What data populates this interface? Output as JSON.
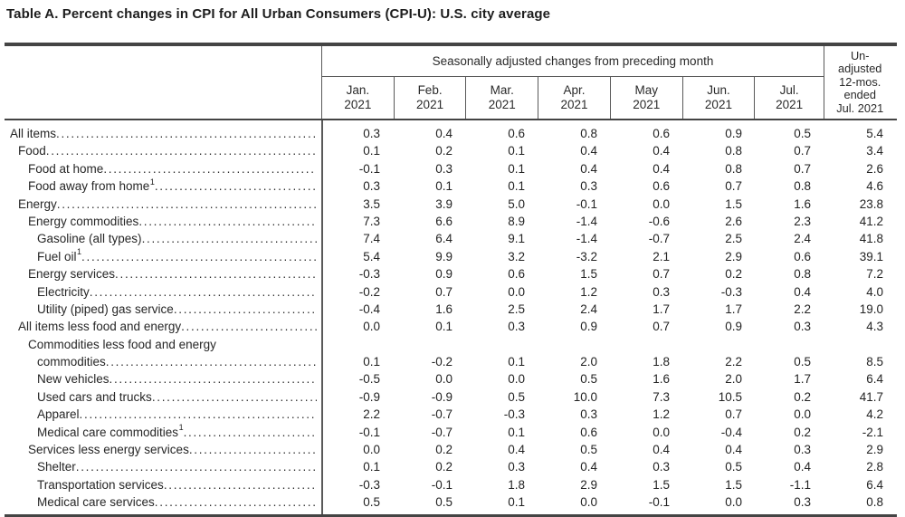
{
  "title": "Table A. Percent changes in CPI for All Urban Consumers (CPI-U): U.S. city average",
  "table": {
    "group_header": "Seasonally adjusted changes from preceding month",
    "months": [
      {
        "month": "Jan.",
        "year": "2021"
      },
      {
        "month": "Feb.",
        "year": "2021"
      },
      {
        "month": "Mar.",
        "year": "2021"
      },
      {
        "month": "Apr.",
        "year": "2021"
      },
      {
        "month": "May",
        "year": "2021"
      },
      {
        "month": "Jun.",
        "year": "2021"
      },
      {
        "month": "Jul.",
        "year": "2021"
      }
    ],
    "unadjusted_header_lines": [
      "Un-",
      "adjusted",
      "12-mos.",
      "ended",
      "Jul. 2021"
    ],
    "rows": [
      {
        "label": "All items",
        "indent": 0,
        "values": [
          "0.3",
          "0.4",
          "0.6",
          "0.8",
          "0.6",
          "0.9",
          "0.5",
          "5.4"
        ]
      },
      {
        "label": "Food",
        "indent": 1,
        "values": [
          "0.1",
          "0.2",
          "0.1",
          "0.4",
          "0.4",
          "0.8",
          "0.7",
          "3.4"
        ]
      },
      {
        "label": "Food at home",
        "indent": 2,
        "values": [
          "-0.1",
          "0.3",
          "0.1",
          "0.4",
          "0.4",
          "0.8",
          "0.7",
          "2.6"
        ]
      },
      {
        "label": "Food away from home",
        "sup": "1",
        "indent": 2,
        "values": [
          "0.3",
          "0.1",
          "0.1",
          "0.3",
          "0.6",
          "0.7",
          "0.8",
          "4.6"
        ]
      },
      {
        "label": "Energy",
        "indent": 1,
        "values": [
          "3.5",
          "3.9",
          "5.0",
          "-0.1",
          "0.0",
          "1.5",
          "1.6",
          "23.8"
        ]
      },
      {
        "label": "Energy commodities",
        "indent": 2,
        "values": [
          "7.3",
          "6.6",
          "8.9",
          "-1.4",
          "-0.6",
          "2.6",
          "2.3",
          "41.2"
        ]
      },
      {
        "label": "Gasoline (all types)",
        "indent": 3,
        "values": [
          "7.4",
          "6.4",
          "9.1",
          "-1.4",
          "-0.7",
          "2.5",
          "2.4",
          "41.8"
        ]
      },
      {
        "label": "Fuel oil",
        "sup": "1",
        "indent": 3,
        "values": [
          "5.4",
          "9.9",
          "3.2",
          "-3.2",
          "2.1",
          "2.9",
          "0.6",
          "39.1"
        ]
      },
      {
        "label": "Energy services",
        "indent": 2,
        "values": [
          "-0.3",
          "0.9",
          "0.6",
          "1.5",
          "0.7",
          "0.2",
          "0.8",
          "7.2"
        ]
      },
      {
        "label": "Electricity",
        "indent": 3,
        "values": [
          "-0.2",
          "0.7",
          "0.0",
          "1.2",
          "0.3",
          "-0.3",
          "0.4",
          "4.0"
        ]
      },
      {
        "label": "Utility (piped) gas service",
        "indent": 3,
        "values": [
          "-0.4",
          "1.6",
          "2.5",
          "2.4",
          "1.7",
          "1.7",
          "2.2",
          "19.0"
        ]
      },
      {
        "label": "All items less food and energy",
        "indent": 1,
        "values": [
          "0.0",
          "0.1",
          "0.3",
          "0.9",
          "0.7",
          "0.9",
          "0.3",
          "4.3"
        ]
      },
      {
        "label": "Commodities less food and energy",
        "label2": "commodities",
        "indent": 2,
        "values": [
          "0.1",
          "-0.2",
          "0.1",
          "2.0",
          "1.8",
          "2.2",
          "0.5",
          "8.5"
        ]
      },
      {
        "label": "New vehicles",
        "indent": 3,
        "values": [
          "-0.5",
          "0.0",
          "0.0",
          "0.5",
          "1.6",
          "2.0",
          "1.7",
          "6.4"
        ]
      },
      {
        "label": "Used cars and trucks",
        "indent": 3,
        "values": [
          "-0.9",
          "-0.9",
          "0.5",
          "10.0",
          "7.3",
          "10.5",
          "0.2",
          "41.7"
        ]
      },
      {
        "label": "Apparel",
        "indent": 3,
        "values": [
          "2.2",
          "-0.7",
          "-0.3",
          "0.3",
          "1.2",
          "0.7",
          "0.0",
          "4.2"
        ]
      },
      {
        "label": "Medical care commodities",
        "sup": "1",
        "indent": 3,
        "values": [
          "-0.1",
          "-0.7",
          "0.1",
          "0.6",
          "0.0",
          "-0.4",
          "0.2",
          "-2.1"
        ]
      },
      {
        "label": "Services less energy services",
        "indent": 2,
        "values": [
          "0.0",
          "0.2",
          "0.4",
          "0.5",
          "0.4",
          "0.4",
          "0.3",
          "2.9"
        ]
      },
      {
        "label": "Shelter",
        "indent": 3,
        "values": [
          "0.1",
          "0.2",
          "0.3",
          "0.4",
          "0.3",
          "0.5",
          "0.4",
          "2.8"
        ]
      },
      {
        "label": "Transportation services",
        "indent": 3,
        "values": [
          "-0.3",
          "-0.1",
          "1.8",
          "2.9",
          "1.5",
          "1.5",
          "-1.1",
          "6.4"
        ]
      },
      {
        "label": "Medical care services",
        "indent": 3,
        "values": [
          "0.5",
          "0.5",
          "0.1",
          "0.0",
          "-0.1",
          "0.0",
          "0.3",
          "0.8"
        ]
      }
    ]
  },
  "colors": {
    "text": "#262626",
    "rule_thick": "#444444",
    "rule_thin": "#595959",
    "background": "#ffffff"
  }
}
